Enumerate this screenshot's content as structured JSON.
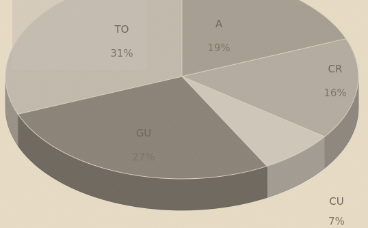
{
  "chart_data": {
    "type": "pie",
    "three_d": true,
    "categories": [
      "A",
      "CR",
      "CU",
      "GU",
      "TO"
    ],
    "values": [
      19,
      16,
      7,
      27,
      31
    ],
    "labels": [
      "19%",
      "16%",
      "7%",
      "27%",
      "31%"
    ],
    "title": "",
    "legend": "none",
    "colors": {
      "A": "#a69d90",
      "CR": "#b4ab9e",
      "CU": "#cfc7b8",
      "GU": "#8a8175",
      "TO": "#c2b9ab"
    }
  }
}
